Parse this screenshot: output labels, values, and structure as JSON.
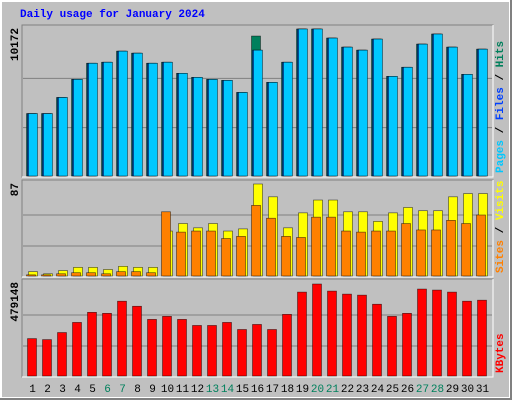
{
  "chart_data": [
    {
      "type": "bar",
      "title": "Daily usage for January 2024",
      "title_color": "#0000ff",
      "ylim": [
        0,
        10172
      ],
      "yticks": [
        10172
      ],
      "grid": true,
      "series": [
        {
          "name": "Hits",
          "color": "#00805c",
          "values": [
            4360,
            4360,
            5467,
            6712,
            7819,
            7889,
            8650,
            8511,
            7819,
            7889,
            7127,
            6851,
            6712,
            6643,
            5813,
            9688,
            6505,
            7889,
            10172,
            10172,
            9549,
            8927,
            8719,
            9480,
            6920,
            7543,
            9134,
            9826,
            8927,
            7058,
            8788
          ]
        },
        {
          "name": "Files",
          "color": "#0040ff",
          "values": [
            4360,
            4360,
            5467,
            6712,
            7819,
            7889,
            8650,
            8511,
            7819,
            7889,
            7127,
            6851,
            6712,
            6643,
            5813,
            8719,
            6505,
            7889,
            10172,
            10172,
            9549,
            8927,
            8719,
            9480,
            6920,
            7543,
            9134,
            9826,
            8927,
            7058,
            8788
          ]
        },
        {
          "name": "Pages",
          "color": "#00c8ff",
          "values": [
            4360,
            4360,
            5467,
            6712,
            7819,
            7889,
            8650,
            8511,
            7819,
            7889,
            7127,
            6851,
            6712,
            6643,
            5813,
            8719,
            6505,
            7889,
            10172,
            10172,
            9549,
            8927,
            8719,
            9480,
            6920,
            7543,
            9134,
            9826,
            8927,
            7058,
            8788
          ]
        }
      ]
    },
    {
      "type": "bar",
      "ylim": [
        0,
        87
      ],
      "yticks": [
        87
      ],
      "grid": true,
      "series": [
        {
          "name": "Visits",
          "color": "#ffff00",
          "values": [
            5,
            3,
            6,
            9,
            9,
            7,
            10,
            9,
            9,
            43,
            50,
            46,
            50,
            43,
            45,
            87,
            75,
            46,
            60,
            72,
            72,
            61,
            61,
            52,
            60,
            65,
            62,
            62,
            75,
            78,
            78
          ]
        },
        {
          "name": "Sites",
          "color": "#ff8000",
          "values": [
            2,
            2,
            3,
            4,
            4,
            3,
            5,
            5,
            4,
            61,
            42,
            43,
            43,
            36,
            38,
            67,
            55,
            38,
            37,
            56,
            56,
            43,
            42,
            43,
            43,
            50,
            44,
            44,
            53,
            50,
            58
          ]
        }
      ]
    },
    {
      "type": "bar",
      "ylim": [
        0,
        479148
      ],
      "yticks": [
        479148
      ],
      "grid": true,
      "categories": [
        "1",
        "2",
        "3",
        "4",
        "5",
        "6",
        "7",
        "8",
        "9",
        "10",
        "11",
        "12",
        "13",
        "14",
        "15",
        "16",
        "17",
        "18",
        "19",
        "20",
        "21",
        "22",
        "23",
        "24",
        "25",
        "26",
        "27",
        "28",
        "29",
        "30",
        "31"
      ],
      "category_label_colors": [
        "#000000",
        "#000000",
        "#000000",
        "#000000",
        "#000000",
        "#00805c",
        "#00805c",
        "#000000",
        "#000000",
        "#000000",
        "#000000",
        "#000000",
        "#00805c",
        "#00805c",
        "#000000",
        "#000000",
        "#000000",
        "#000000",
        "#000000",
        "#00805c",
        "#00805c",
        "#000000",
        "#000000",
        "#000000",
        "#000000",
        "#000000",
        "#00805c",
        "#00805c",
        "#000000",
        "#000000",
        "#000000"
      ],
      "series": [
        {
          "name": "KBytes",
          "color": "#ff0000",
          "values": [
            197908,
            192700,
            229156,
            281237,
            333318,
            328110,
            390608,
            364567,
            296862,
            312486,
            296862,
            265613,
            265613,
            281237,
            244781,
            270821,
            244781,
            322902,
            437480,
            479148,
            442688,
            427064,
            421856,
            374983,
            312486,
            328110,
            453108,
            447900,
            437480,
            390608,
            395816
          ]
        }
      ]
    }
  ]
}
